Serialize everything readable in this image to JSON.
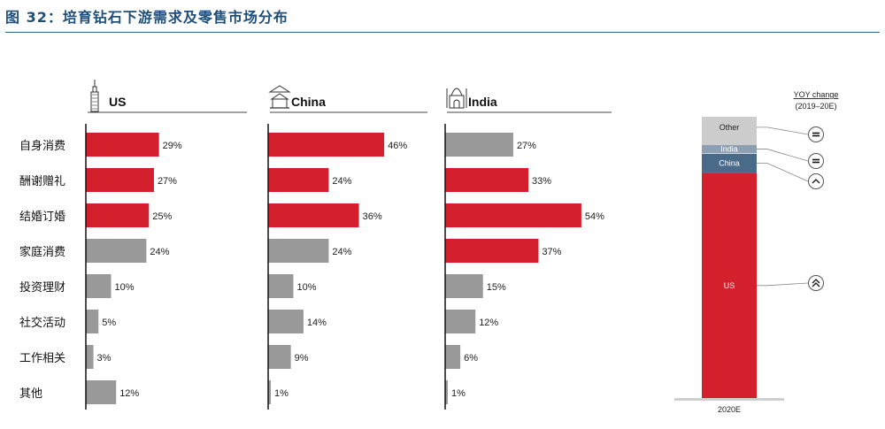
{
  "title": "图 32：培育钻石下游需求及零售市场分布",
  "colors": {
    "highlight": "#d41f2c",
    "neutral": "#999999",
    "china_seg": "#4a6a8a",
    "other_seg": "#cccccc",
    "india_seg": "#8da0b3"
  },
  "chart_data": [
    {
      "type": "bar",
      "orientation": "horizontal",
      "categories": [
        "自身消费",
        "酬谢赠礼",
        "结婚订婚",
        "家庭消费",
        "投资理财",
        "社交活动",
        "工作相关",
        "其他"
      ],
      "panels": [
        {
          "name": "US",
          "icon": "skyscraper-icon",
          "values": [
            29,
            27,
            25,
            24,
            10,
            5,
            3,
            12
          ],
          "data_labels": [
            "29%",
            "27%",
            "25%",
            "24%",
            "10%",
            "5%",
            "3%",
            "12%"
          ],
          "highlighted": [
            true,
            true,
            true,
            false,
            false,
            false,
            false,
            false
          ]
        },
        {
          "name": "China",
          "icon": "temple-icon",
          "values": [
            46,
            24,
            36,
            24,
            10,
            14,
            9,
            1
          ],
          "data_labels": [
            "46%",
            "24%",
            "36%",
            "24%",
            "10%",
            "14%",
            "9%",
            "1%"
          ],
          "highlighted": [
            true,
            true,
            true,
            false,
            false,
            false,
            false,
            false
          ]
        },
        {
          "name": "India",
          "icon": "taj-mahal-icon",
          "values": [
            27,
            33,
            54,
            37,
            15,
            12,
            6,
            1
          ],
          "data_labels": [
            "27%",
            "33%",
            "54%",
            "37%",
            "15%",
            "12%",
            "6%",
            "1%"
          ],
          "highlighted": [
            false,
            true,
            true,
            true,
            false,
            false,
            false,
            false
          ]
        }
      ],
      "xlim": [
        0,
        60
      ],
      "grid": false,
      "legend": "none"
    },
    {
      "type": "bar",
      "stacked": true,
      "categories": [
        "2020E"
      ],
      "series": [
        {
          "name": "US",
          "values": [
            80
          ],
          "color": "#d41f2c",
          "yoy": "double-up-arrow-icon"
        },
        {
          "name": "China",
          "values": [
            7
          ],
          "color": "#4a6a8a",
          "yoy": "up-arrow-icon"
        },
        {
          "name": "India",
          "values": [
            3
          ],
          "color": "#8da0b3",
          "yoy": "equal-icon"
        },
        {
          "name": "Other",
          "values": [
            10
          ],
          "color": "#cccccc",
          "yoy": "equal-icon"
        }
      ],
      "ylim": [
        0,
        100
      ],
      "yoy_title": "YOY change",
      "yoy_period": "(2019–20E)",
      "legend": "none"
    }
  ]
}
